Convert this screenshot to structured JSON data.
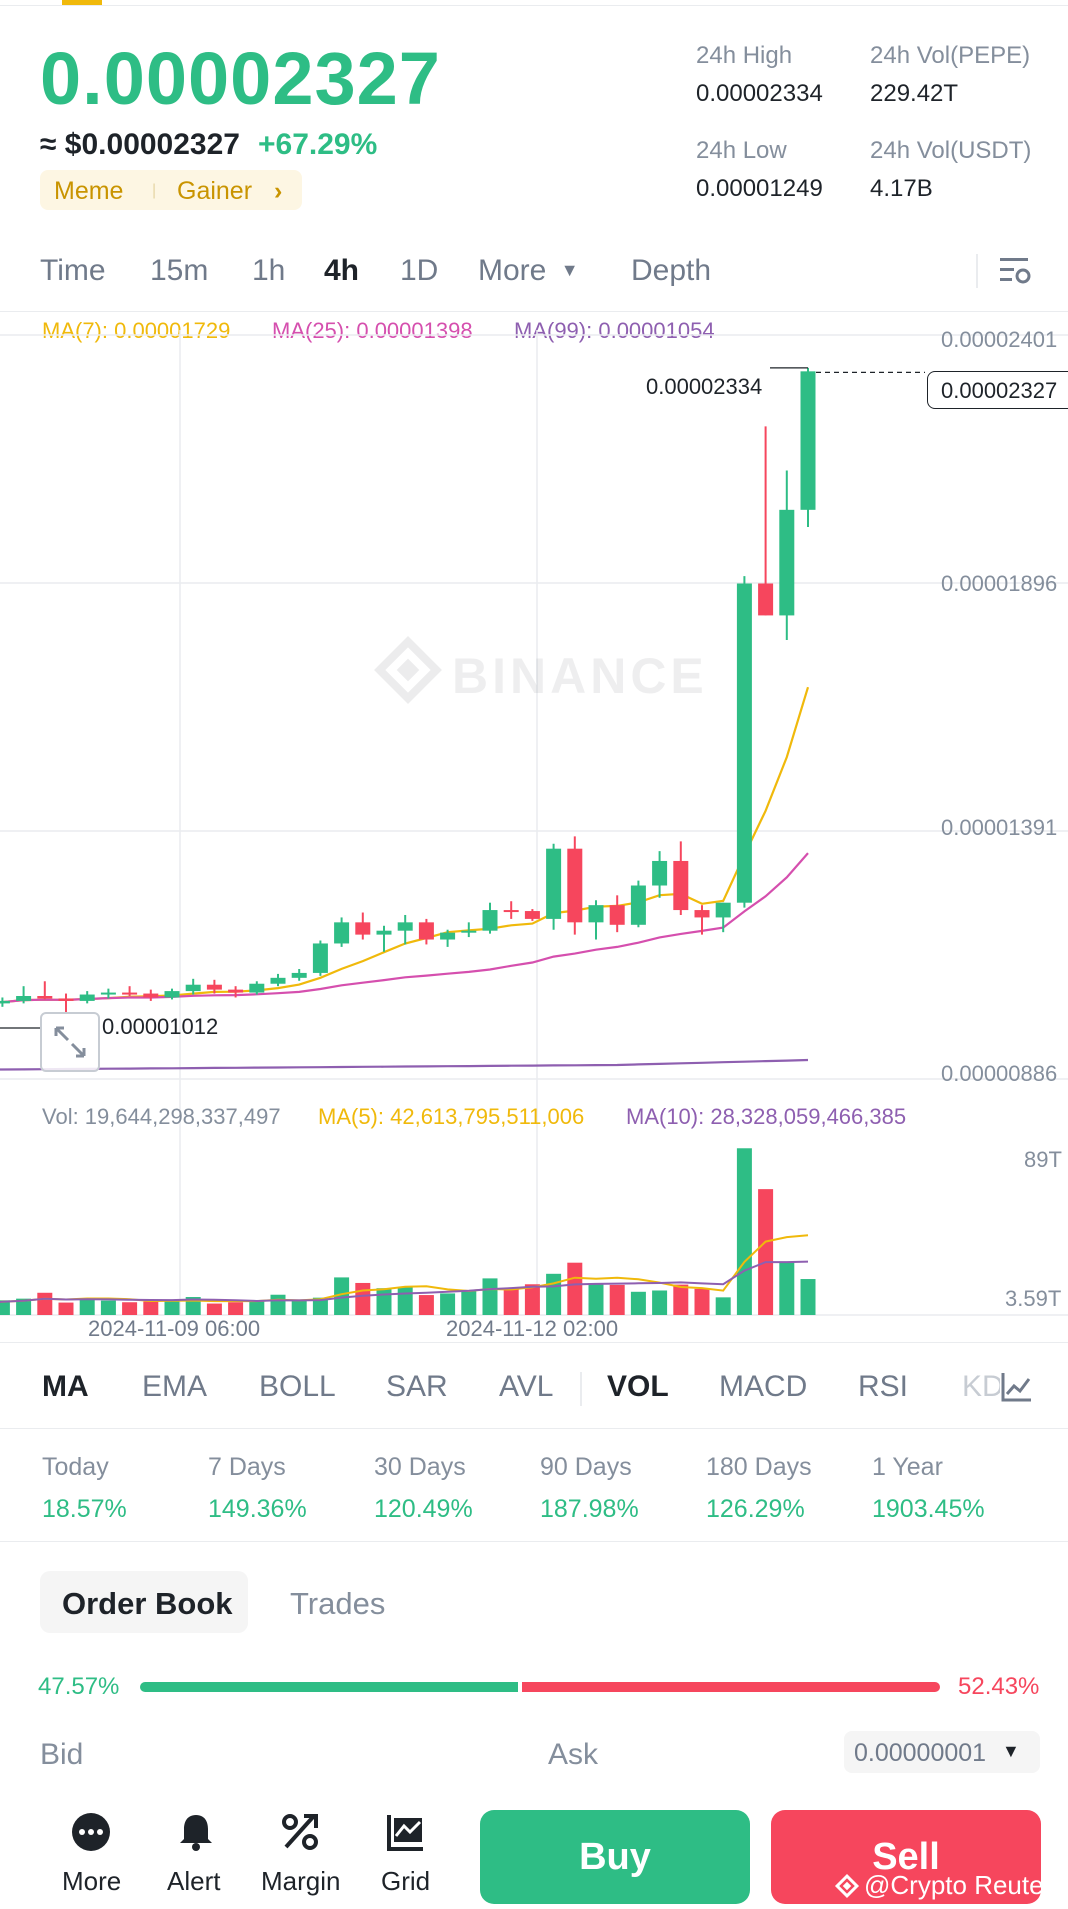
{
  "header": {
    "last_price": "0.00002327",
    "usd_price": "≈ $0.00002327",
    "change_pct": "+67.29%",
    "tags": [
      "Meme",
      "Gainer"
    ],
    "stats": {
      "high_label": "24h High",
      "high_value": "0.00002334",
      "low_label": "24h Low",
      "low_value": "0.00001249",
      "vol_base_label": "24h Vol(PEPE)",
      "vol_base_value": "229.42T",
      "vol_quote_label": "24h Vol(USDT)",
      "vol_quote_value": "4.17B"
    }
  },
  "timeframes": {
    "items": [
      "Time",
      "15m",
      "1h",
      "4h",
      "1D",
      "More",
      "Depth"
    ],
    "active": "4h"
  },
  "chart_legend": {
    "ma7": "MA(7): 0.00001729",
    "ma25": "MA(25): 0.00001398",
    "ma99": "MA(99): 0.00001054"
  },
  "price_axis": [
    "0.00002401",
    "0.00001896",
    "0.00001391",
    "0.00000886"
  ],
  "annotations": {
    "high_marker": "0.00002334",
    "last_marker": "0.00002327",
    "low_marker": "0.00001012"
  },
  "watermark": "BINANCE",
  "volume_legend": {
    "vol": "Vol: 19,644,298,337,497",
    "ma5": "MA(5): 42,613,795,511,006",
    "ma10": "MA(10): 28,328,059,466,385"
  },
  "volume_axis": [
    "89T",
    "3.59T"
  ],
  "time_axis": [
    "2024-11-09 06:00",
    "2024-11-12 02:00"
  ],
  "indicators": {
    "main": [
      "MA",
      "EMA",
      "BOLL",
      "SAR",
      "AVL"
    ],
    "sub": [
      "VOL",
      "MACD",
      "RSI",
      "KDJ"
    ],
    "active_main": "MA",
    "active_sub": "VOL"
  },
  "performance": [
    {
      "label": "Today",
      "value": "18.57%"
    },
    {
      "label": "7 Days",
      "value": "149.36%"
    },
    {
      "label": "30 Days",
      "value": "120.49%"
    },
    {
      "label": "90 Days",
      "value": "187.98%"
    },
    {
      "label": "180 Days",
      "value": "126.29%"
    },
    {
      "label": "1 Year",
      "value": "1903.45%"
    }
  ],
  "order_book": {
    "tab_order_book": "Order Book",
    "tab_trades": "Trades",
    "bid_pct": "47.57%",
    "ask_pct": "52.43%",
    "bid_label": "Bid",
    "ask_label": "Ask",
    "precision": "0.00000001"
  },
  "bottom_nav": {
    "more": "More",
    "alert": "Alert",
    "margin": "Margin",
    "grid": "Grid",
    "buy": "Buy",
    "sell": "Sell",
    "watermark": "@Crypto Reuters"
  },
  "colors": {
    "up": "#2ebd85",
    "down": "#f6465d",
    "ma7": "#f0b90b",
    "ma25": "#d54fae",
    "ma99": "#8e5fb0",
    "brand": "#f0b90b"
  },
  "chart_data": {
    "type": "candlestick",
    "symbol_unit": "USDT",
    "interval": "4h",
    "ylim": [
      8.86e-06,
      2.401e-05
    ],
    "x_ticks": [
      "2024-11-09 06:00",
      "2024-11-12 02:00"
    ],
    "candles": [
      {
        "o": 1.038e-05,
        "h": 1.045e-05,
        "l": 1.03e-05,
        "c": 1.04e-05,
        "v": 3.6
      },
      {
        "o": 1.04e-05,
        "h": 1.052e-05,
        "l": 1.033e-05,
        "c": 1.045e-05,
        "v": 4.5
      },
      {
        "o": 1.045e-05,
        "h": 1.075e-05,
        "l": 1.04e-05,
        "c": 1.055e-05,
        "v": 5.0
      },
      {
        "o": 1.055e-05,
        "h": 1.085e-05,
        "l": 1.048e-05,
        "c": 1.05e-05,
        "v": 6.8
      },
      {
        "o": 1.05e-05,
        "h": 1.06e-05,
        "l": 1.02e-05,
        "c": 1.045e-05,
        "v": 3.8
      },
      {
        "o": 1.045e-05,
        "h": 1.065e-05,
        "l": 1.04e-05,
        "c": 1.058e-05,
        "v": 5.2
      },
      {
        "o": 1.058e-05,
        "h": 1.07e-05,
        "l": 1.05e-05,
        "c": 1.062e-05,
        "v": 4.4
      },
      {
        "o": 1.062e-05,
        "h": 1.075e-05,
        "l": 1.055e-05,
        "c": 1.06e-05,
        "v": 3.9
      },
      {
        "o": 1.06e-05,
        "h": 1.068e-05,
        "l": 1.045e-05,
        "c": 1.052e-05,
        "v": 4.1
      },
      {
        "o": 1.052e-05,
        "h": 1.07e-05,
        "l": 1.048e-05,
        "c": 1.065e-05,
        "v": 4.3
      },
      {
        "o": 1.065e-05,
        "h": 1.09e-05,
        "l": 1.058e-05,
        "c": 1.078e-05,
        "v": 5.5
      },
      {
        "o": 1.078e-05,
        "h": 1.088e-05,
        "l": 1.06e-05,
        "c": 1.068e-05,
        "v": 3.5
      },
      {
        "o": 1.068e-05,
        "h": 1.075e-05,
        "l": 1.052e-05,
        "c": 1.062e-05,
        "v": 3.9
      },
      {
        "o": 1.062e-05,
        "h": 1.085e-05,
        "l": 1.058e-05,
        "c": 1.08e-05,
        "v": 4.1
      },
      {
        "o": 1.08e-05,
        "h": 1.1e-05,
        "l": 1.075e-05,
        "c": 1.092e-05,
        "v": 6.2
      },
      {
        "o": 1.092e-05,
        "h": 1.11e-05,
        "l": 1.086e-05,
        "c": 1.102e-05,
        "v": 4.7
      },
      {
        "o": 1.102e-05,
        "h": 1.168e-05,
        "l": 1.096e-05,
        "c": 1.162e-05,
        "v": 5.3
      },
      {
        "o": 1.162e-05,
        "h": 1.215e-05,
        "l": 1.155e-05,
        "c": 1.205e-05,
        "v": 11.5
      },
      {
        "o": 1.205e-05,
        "h": 1.225e-05,
        "l": 1.17e-05,
        "c": 1.18e-05,
        "v": 9.8
      },
      {
        "o": 1.18e-05,
        "h": 1.198e-05,
        "l": 1.145e-05,
        "c": 1.188e-05,
        "v": 8.2
      },
      {
        "o": 1.188e-05,
        "h": 1.22e-05,
        "l": 1.16e-05,
        "c": 1.205e-05,
        "v": 8.5
      },
      {
        "o": 1.205e-05,
        "h": 1.212e-05,
        "l": 1.16e-05,
        "c": 1.17e-05,
        "v": 6.1
      },
      {
        "o": 1.17e-05,
        "h": 1.19e-05,
        "l": 1.155e-05,
        "c": 1.184e-05,
        "v": 6.6
      },
      {
        "o": 1.184e-05,
        "h": 1.205e-05,
        "l": 1.175e-05,
        "c": 1.188e-05,
        "v": 7.3
      },
      {
        "o": 1.188e-05,
        "h": 1.245e-05,
        "l": 1.182e-05,
        "c": 1.23e-05,
        "v": 11.2
      },
      {
        "o": 1.23e-05,
        "h": 1.248e-05,
        "l": 1.212e-05,
        "c": 1.228e-05,
        "v": 7.8
      },
      {
        "o": 1.228e-05,
        "h": 1.232e-05,
        "l": 1.208e-05,
        "c": 1.212e-05,
        "v": 9.4
      },
      {
        "o": 1.212e-05,
        "h": 1.365e-05,
        "l": 1.19e-05,
        "c": 1.355e-05,
        "v": 12.6
      },
      {
        "o": 1.355e-05,
        "h": 1.38e-05,
        "l": 1.18e-05,
        "c": 1.205e-05,
        "v": 16.0
      },
      {
        "o": 1.205e-05,
        "h": 1.25e-05,
        "l": 1.17e-05,
        "c": 1.24e-05,
        "v": 9.7
      },
      {
        "o": 1.24e-05,
        "h": 1.26e-05,
        "l": 1.185e-05,
        "c": 1.2e-05,
        "v": 9.2
      },
      {
        "o": 1.2e-05,
        "h": 1.29e-05,
        "l": 1.195e-05,
        "c": 1.28e-05,
        "v": 7.1
      },
      {
        "o": 1.28e-05,
        "h": 1.35e-05,
        "l": 1.255e-05,
        "c": 1.33e-05,
        "v": 7.5
      },
      {
        "o": 1.33e-05,
        "h": 1.37e-05,
        "l": 1.22e-05,
        "c": 1.23e-05,
        "v": 9.3
      },
      {
        "o": 1.23e-05,
        "h": 1.24e-05,
        "l": 1.18e-05,
        "c": 1.215e-05,
        "v": 8.0
      },
      {
        "o": 1.215e-05,
        "h": 1.245e-05,
        "l": 1.185e-05,
        "c": 1.245e-05,
        "v": 5.4
      },
      {
        "o": 1.245e-05,
        "h": 1.91e-05,
        "l": 1.235e-05,
        "c": 1.895e-05,
        "v": 51.0
      },
      {
        "o": 1.895e-05,
        "h": 2.215e-05,
        "l": 1.83e-05,
        "c": 1.83e-05,
        "v": 38.5
      },
      {
        "o": 1.83e-05,
        "h": 2.125e-05,
        "l": 1.78e-05,
        "c": 2.045e-05,
        "v": 16.2
      },
      {
        "o": 2.045e-05,
        "h": 2.334e-05,
        "l": 2.01e-05,
        "c": 2.327e-05,
        "v": 11.0
      }
    ]
  }
}
